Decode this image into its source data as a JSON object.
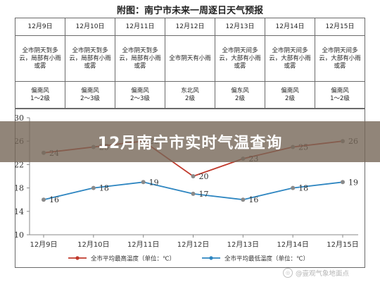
{
  "page_title": "附图：南宁市未来一周逐日天气预报",
  "banner_text": "12月南宁市实时气温查询",
  "watermark_text": "@壹观气象地面点",
  "forecast": {
    "dates": [
      "12月9日",
      "12月10日",
      "12月11日",
      "12月12日",
      "12月13日",
      "12月14日",
      "12月15日"
    ],
    "weather": [
      "全市阴天到多云，局部有小雨或雾",
      "全市阴天到多云，局部有小雨或雾",
      "全市阴天到多云，局部有小雨或雾",
      "全市阴天有小雨",
      "全市阴天间多云，大部有小雨或雾",
      "全市阴天间多云，大部有小雨或雾",
      "全市阴天间多云，大部有小雨或雾"
    ],
    "wind_direction": [
      "偏南风",
      "偏南风",
      "偏南风",
      "东北风",
      "偏东风",
      "偏南风",
      "偏南风"
    ],
    "wind_level": [
      "1～2级",
      "2～3级",
      "2～3级",
      "2级",
      "2级",
      "2级",
      "1～2级"
    ]
  },
  "chart_data": {
    "type": "line",
    "categories": [
      "12月9日",
      "12月10日",
      "12月11日",
      "12月12日",
      "12月13日",
      "12月14日",
      "12月15日"
    ],
    "series": [
      {
        "name": "全市平均最高温度（单位：℃）",
        "color": "#c0392b",
        "values": [
          24,
          25,
          26,
          20,
          23,
          25,
          26
        ]
      },
      {
        "name": "全市平均最低温度（单位：℃）",
        "color": "#2e86c1",
        "values": [
          16,
          18,
          19,
          17,
          16,
          18,
          19
        ]
      }
    ],
    "ylim": [
      10,
      30
    ],
    "yticks": [
      "10",
      "14",
      "18",
      "22",
      "26",
      "30"
    ],
    "grid": false,
    "legend_position": "bottom"
  }
}
